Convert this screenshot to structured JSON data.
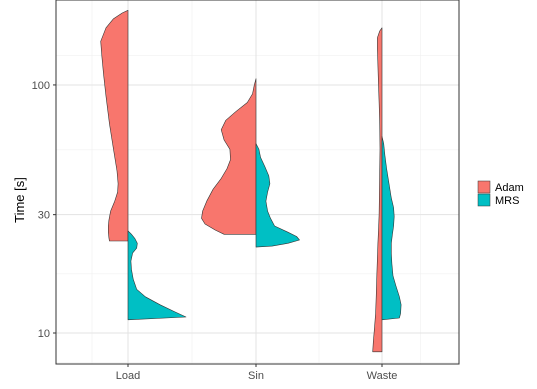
{
  "chart_data": {
    "type": "split-violin",
    "title": "",
    "xlabel": "",
    "ylabel": "Time [s]",
    "y_scale": "log10",
    "ylim": [
      7.5,
      220
    ],
    "y_ticks": [
      10,
      30,
      100
    ],
    "y_tick_labels": [
      "10",
      "30",
      "100"
    ],
    "categories": [
      "Load",
      "Sin",
      "Waste"
    ],
    "grid": true,
    "legend_position": "right",
    "series": [
      {
        "name": "Adam",
        "color": "#F8766D",
        "side": "left",
        "violins": [
          {
            "category": "Load",
            "profile": [
              [
                23.5,
                0.32
              ],
              [
                24.2,
                0.33
              ],
              [
                25.5,
                0.34
              ],
              [
                27,
                0.34
              ],
              [
                28.5,
                0.33
              ],
              [
                31,
                0.3
              ],
              [
                34,
                0.23
              ],
              [
                37,
                0.18
              ],
              [
                40,
                0.17
              ],
              [
                45,
                0.19
              ],
              [
                55,
                0.25
              ],
              [
                70,
                0.32
              ],
              [
                90,
                0.38
              ],
              [
                110,
                0.42
              ],
              [
                130,
                0.45
              ],
              [
                150,
                0.47
              ],
              [
                170,
                0.38
              ],
              [
                185,
                0.25
              ],
              [
                195,
                0.1
              ],
              [
                200,
                0.0
              ]
            ]
          },
          {
            "category": "Sin",
            "profile": [
              [
                25,
                0.55
              ],
              [
                26,
                0.7
              ],
              [
                27.5,
                0.88
              ],
              [
                29,
                0.94
              ],
              [
                31,
                0.92
              ],
              [
                34,
                0.85
              ],
              [
                38,
                0.74
              ],
              [
                42,
                0.6
              ],
              [
                46,
                0.5
              ],
              [
                50,
                0.44
              ],
              [
                55,
                0.45
              ],
              [
                60,
                0.55
              ],
              [
                66,
                0.6
              ],
              [
                72,
                0.52
              ],
              [
                78,
                0.35
              ],
              [
                85,
                0.15
              ],
              [
                92,
                0.06
              ],
              [
                100,
                0.03
              ],
              [
                106,
                0.0
              ]
            ]
          },
          {
            "category": "Waste",
            "profile": [
              [
                8.4,
                0.16
              ],
              [
                9.2,
                0.15
              ],
              [
                10.5,
                0.13
              ],
              [
                12,
                0.11
              ],
              [
                14,
                0.1
              ],
              [
                17,
                0.09
              ],
              [
                20,
                0.08
              ],
              [
                23,
                0.07
              ],
              [
                26,
                0.06
              ],
              [
                30,
                0.05
              ],
              [
                36,
                0.045
              ],
              [
                45,
                0.04
              ],
              [
                55,
                0.035
              ],
              [
                70,
                0.04
              ],
              [
                85,
                0.05
              ],
              [
                100,
                0.06
              ],
              [
                120,
                0.07
              ],
              [
                140,
                0.08
              ],
              [
                155,
                0.08
              ],
              [
                165,
                0.04
              ],
              [
                170,
                0.0
              ]
            ]
          }
        ]
      },
      {
        "name": "MRS",
        "color": "#00BFC4",
        "side": "right",
        "violins": [
          {
            "category": "Load",
            "profile": [
              [
                11.3,
                0.0
              ],
              [
                11.6,
                1.0
              ],
              [
                12.2,
                0.8
              ],
              [
                13,
                0.55
              ],
              [
                14,
                0.3
              ],
              [
                15,
                0.15
              ],
              [
                16.5,
                0.09
              ],
              [
                18,
                0.06
              ],
              [
                19.5,
                0.05
              ],
              [
                21,
                0.08
              ],
              [
                22,
                0.15
              ],
              [
                23,
                0.16
              ],
              [
                24,
                0.12
              ],
              [
                25,
                0.06
              ],
              [
                25.8,
                0.0
              ]
            ]
          },
          {
            "category": "Sin",
            "profile": [
              [
                22.2,
                0.0
              ],
              [
                22.4,
                0.28
              ],
              [
                23,
                0.55
              ],
              [
                23.7,
                0.75
              ],
              [
                24.5,
                0.7
              ],
              [
                25.5,
                0.55
              ],
              [
                27,
                0.32
              ],
              [
                29,
                0.25
              ],
              [
                31,
                0.2
              ],
              [
                34,
                0.17
              ],
              [
                37,
                0.2
              ],
              [
                40,
                0.24
              ],
              [
                43,
                0.22
              ],
              [
                47,
                0.15
              ],
              [
                51,
                0.08
              ],
              [
                55,
                0.05
              ],
              [
                58,
                0.0
              ]
            ]
          },
          {
            "category": "Waste",
            "profile": [
              [
                11.3,
                0.0
              ],
              [
                11.5,
                0.3
              ],
              [
                12,
                0.32
              ],
              [
                13,
                0.33
              ],
              [
                14,
                0.3
              ],
              [
                15.5,
                0.24
              ],
              [
                17,
                0.19
              ],
              [
                19,
                0.17
              ],
              [
                21,
                0.16
              ],
              [
                23,
                0.16
              ],
              [
                25,
                0.18
              ],
              [
                27,
                0.2
              ],
              [
                29.5,
                0.21
              ],
              [
                32,
                0.2
              ],
              [
                35,
                0.16
              ],
              [
                40,
                0.12
              ],
              [
                46,
                0.08
              ],
              [
                52,
                0.05
              ],
              [
                58,
                0.03
              ],
              [
                62,
                0.0
              ]
            ]
          }
        ]
      }
    ]
  }
}
